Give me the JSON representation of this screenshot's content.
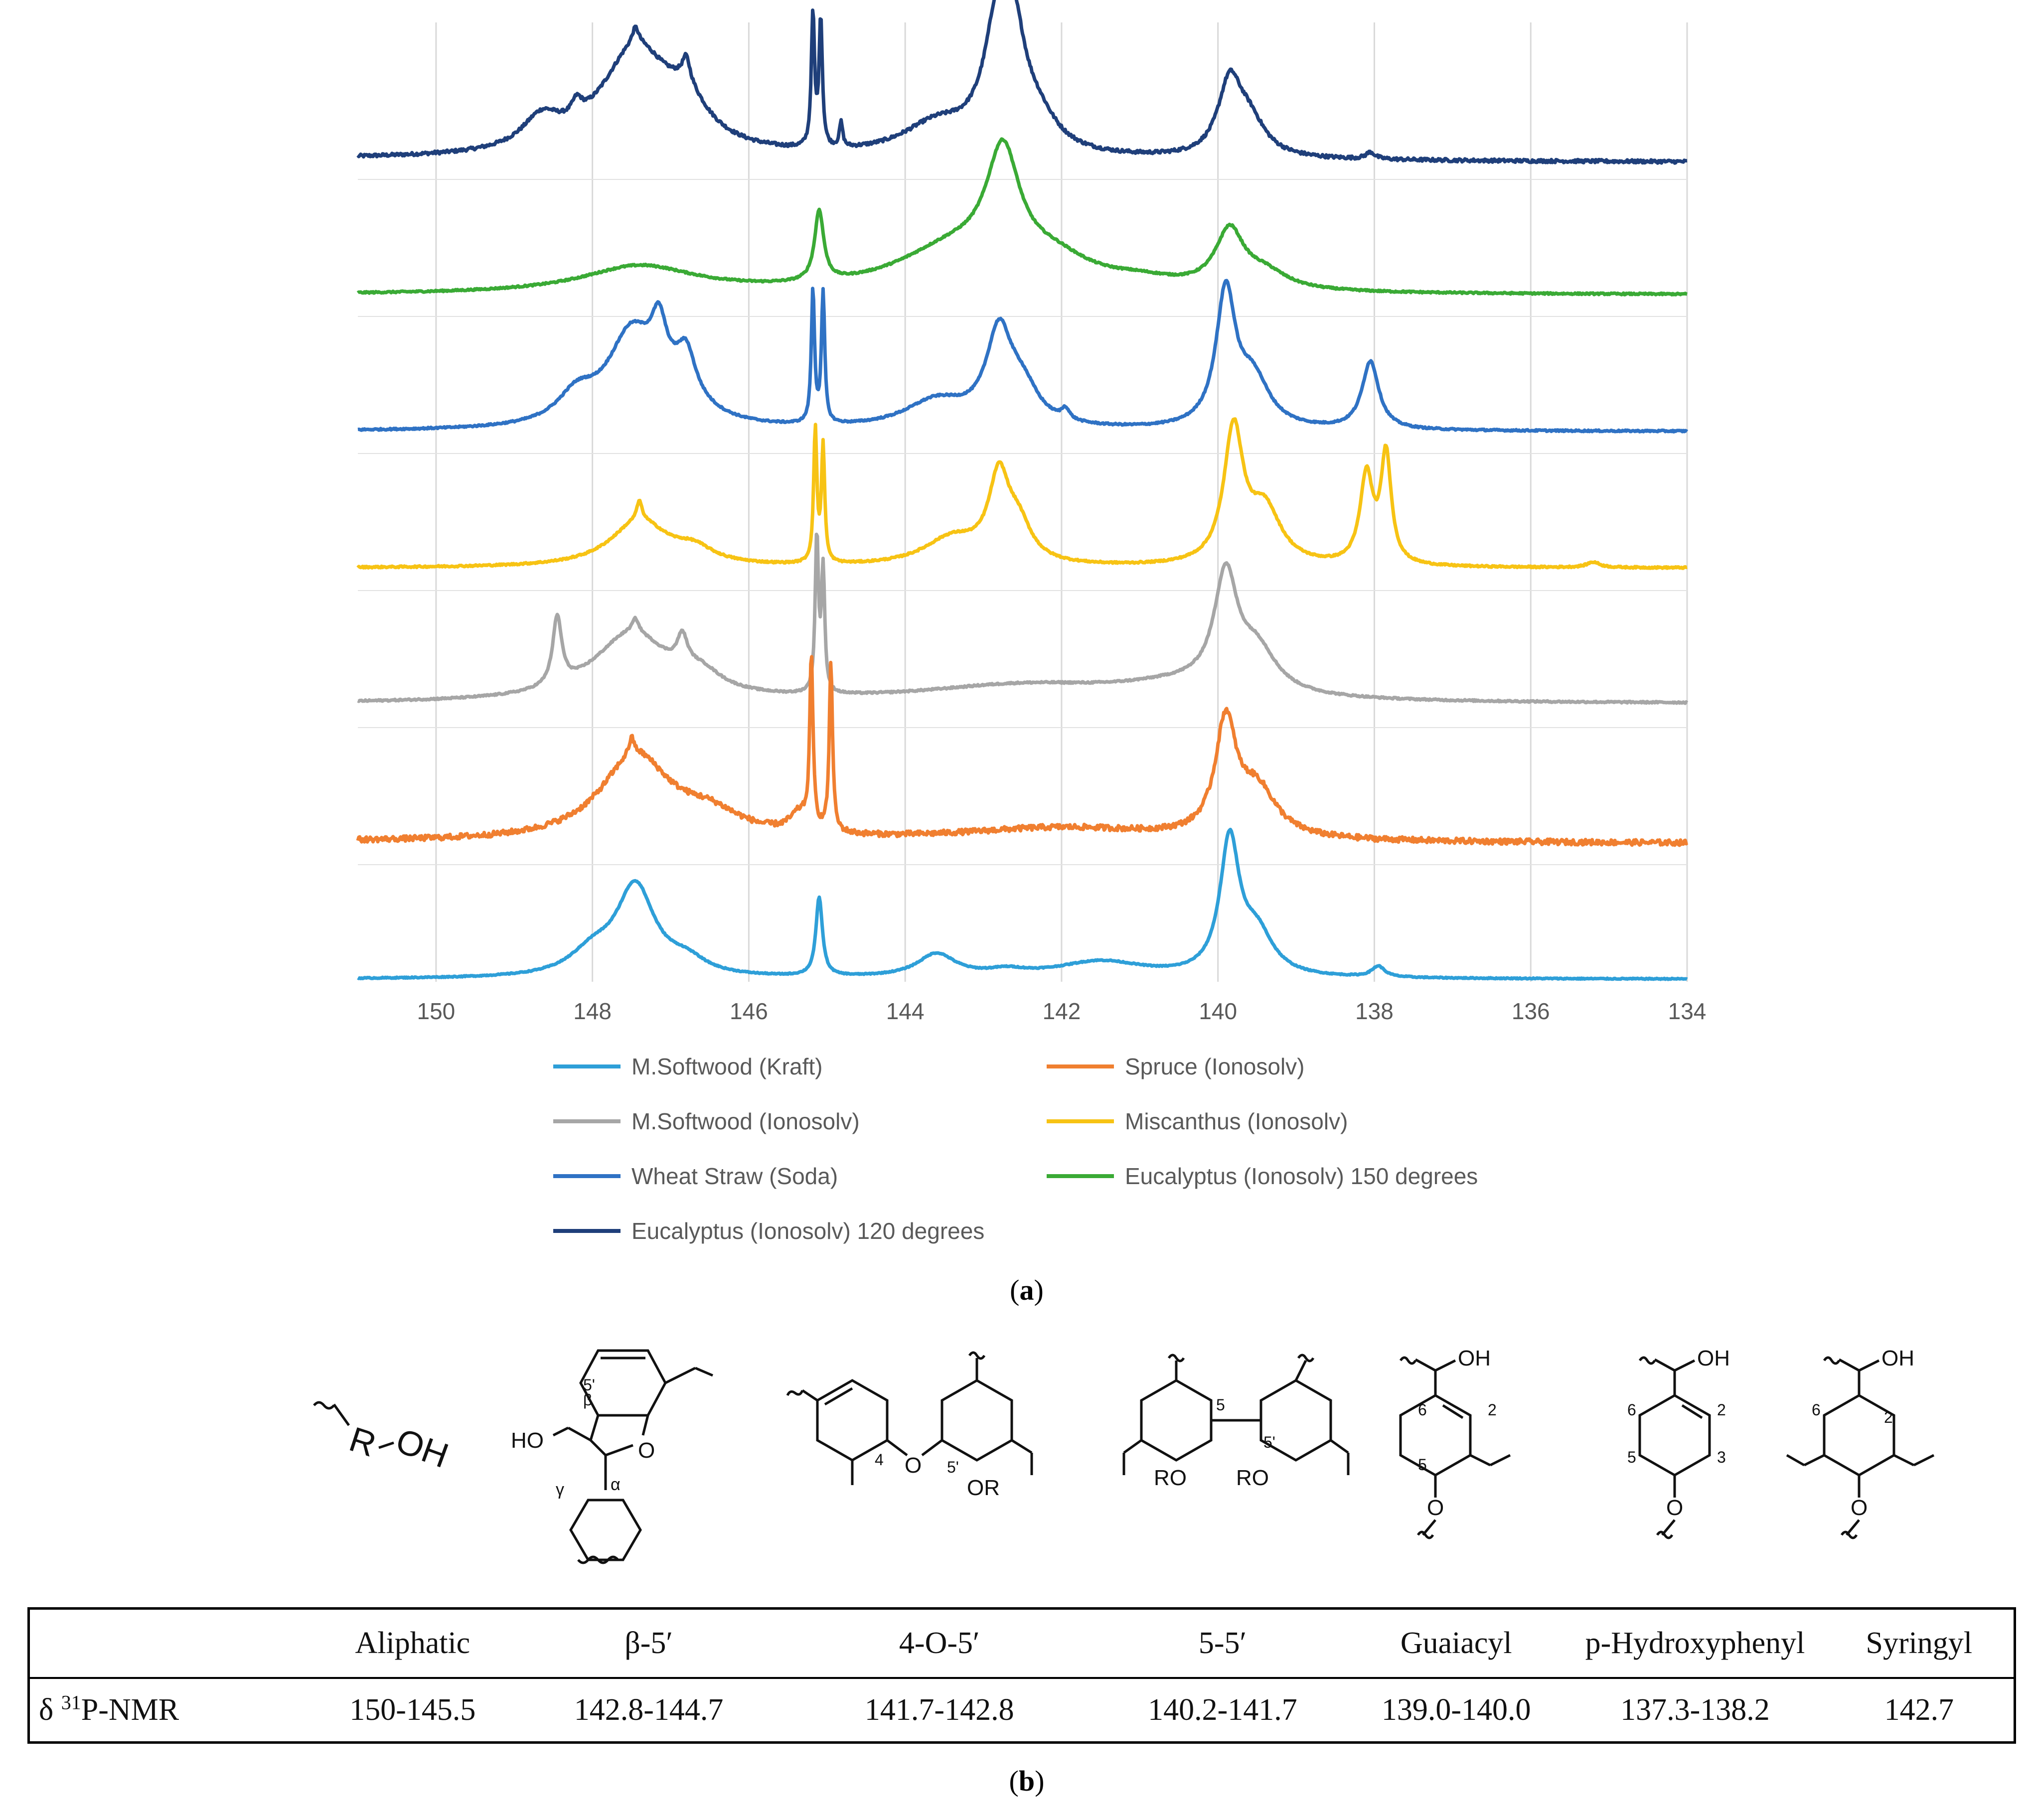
{
  "chart_data": {
    "type": "line",
    "title": "",
    "xlabel": "",
    "ylabel": "",
    "x_reversed": true,
    "xlim": [
      151,
      134
    ],
    "xticks": [
      150,
      148,
      146,
      144,
      142,
      140,
      138,
      136,
      134
    ],
    "xtick_labels": [
      "150",
      "148",
      "146",
      "144",
      "142",
      "140",
      "138",
      "136",
      "134"
    ],
    "grid": true,
    "legend_position": "bottom",
    "panel_label": "a",
    "series": [
      {
        "name": "Eucalyptus (Ionosolv) 120 degrees",
        "color": "#1f3f7a",
        "stack_index": 0,
        "baseline_left": 0.0,
        "baseline_right": -0.02,
        "noise": 0.012,
        "peaks": [
          {
            "x": 147.45,
            "h": 0.78,
            "w": 0.55
          },
          {
            "x": 148.65,
            "h": 0.22,
            "w": 0.3
          },
          {
            "x": 148.2,
            "h": 0.12,
            "w": 0.08
          },
          {
            "x": 147.45,
            "h": 0.12,
            "w": 0.05
          },
          {
            "x": 146.8,
            "h": 0.18,
            "w": 0.06
          },
          {
            "x": 146.8,
            "h": 0.25,
            "w": 0.35
          },
          {
            "x": 145.18,
            "h": 0.98,
            "w": 0.025
          },
          {
            "x": 145.08,
            "h": 0.95,
            "w": 0.025
          },
          {
            "x": 144.82,
            "h": 0.18,
            "w": 0.025
          },
          {
            "x": 143.6,
            "h": 0.22,
            "w": 0.55
          },
          {
            "x": 142.8,
            "h": 0.95,
            "w": 0.22
          },
          {
            "x": 142.6,
            "h": 0.55,
            "w": 0.18
          },
          {
            "x": 142.3,
            "h": 0.2,
            "w": 0.3
          },
          {
            "x": 139.85,
            "h": 0.52,
            "w": 0.18
          },
          {
            "x": 139.6,
            "h": 0.25,
            "w": 0.25
          },
          {
            "x": 138.05,
            "h": 0.05,
            "w": 0.07
          }
        ]
      },
      {
        "name": "Eucalyptus (Ionosolv) 150 degrees",
        "color": "#3aaa35",
        "stack_index": 1,
        "baseline_left": 0.0,
        "baseline_right": 0.0,
        "noise": 0.006,
        "peaks": [
          {
            "x": 147.4,
            "h": 0.2,
            "w": 0.9
          },
          {
            "x": 145.1,
            "h": 0.52,
            "w": 0.07
          },
          {
            "x": 143.4,
            "h": 0.3,
            "w": 0.9
          },
          {
            "x": 142.75,
            "h": 0.85,
            "w": 0.26
          },
          {
            "x": 142.1,
            "h": 0.18,
            "w": 0.6
          },
          {
            "x": 139.85,
            "h": 0.42,
            "w": 0.22
          },
          {
            "x": 139.4,
            "h": 0.12,
            "w": 0.35
          },
          {
            "x": 141.0,
            "h": 0.06,
            "w": 0.6
          }
        ]
      },
      {
        "name": "Wheat Straw (Soda)",
        "color": "#2f72c4",
        "stack_index": 2,
        "baseline_left": 0.0,
        "baseline_right": 0.0,
        "noise": 0.006,
        "peaks": [
          {
            "x": 147.5,
            "h": 0.66,
            "w": 0.38
          },
          {
            "x": 148.2,
            "h": 0.2,
            "w": 0.3
          },
          {
            "x": 147.15,
            "h": 0.4,
            "w": 0.12
          },
          {
            "x": 146.8,
            "h": 0.3,
            "w": 0.14
          },
          {
            "x": 146.9,
            "h": 0.18,
            "w": 0.4
          },
          {
            "x": 145.18,
            "h": 0.98,
            "w": 0.025
          },
          {
            "x": 145.05,
            "h": 0.96,
            "w": 0.025
          },
          {
            "x": 143.6,
            "h": 0.2,
            "w": 0.5
          },
          {
            "x": 142.8,
            "h": 0.66,
            "w": 0.2
          },
          {
            "x": 142.5,
            "h": 0.25,
            "w": 0.25
          },
          {
            "x": 141.95,
            "h": 0.08,
            "w": 0.06
          },
          {
            "x": 139.9,
            "h": 0.98,
            "w": 0.15
          },
          {
            "x": 139.55,
            "h": 0.35,
            "w": 0.25
          },
          {
            "x": 138.05,
            "h": 0.5,
            "w": 0.13
          }
        ]
      },
      {
        "name": "Miscanthus (Ionosolv)",
        "color": "#f7c314",
        "stack_index": 3,
        "baseline_left": 0.0,
        "baseline_right": 0.0,
        "noise": 0.006,
        "peaks": [
          {
            "x": 147.4,
            "h": 0.34,
            "w": 0.45
          },
          {
            "x": 147.4,
            "h": 0.14,
            "w": 0.04
          },
          {
            "x": 146.7,
            "h": 0.1,
            "w": 0.3
          },
          {
            "x": 145.15,
            "h": 0.98,
            "w": 0.025
          },
          {
            "x": 145.05,
            "h": 0.85,
            "w": 0.025
          },
          {
            "x": 143.4,
            "h": 0.2,
            "w": 0.45
          },
          {
            "x": 142.8,
            "h": 0.6,
            "w": 0.16
          },
          {
            "x": 142.55,
            "h": 0.25,
            "w": 0.2
          },
          {
            "x": 139.8,
            "h": 0.98,
            "w": 0.15
          },
          {
            "x": 139.4,
            "h": 0.4,
            "w": 0.25
          },
          {
            "x": 138.1,
            "h": 0.65,
            "w": 0.1
          },
          {
            "x": 137.85,
            "h": 0.8,
            "w": 0.08
          },
          {
            "x": 135.2,
            "h": 0.04,
            "w": 0.1
          }
        ]
      },
      {
        "name": "M.Softwood (Ionosolv)",
        "color": "#a6a6a6",
        "stack_index": 4,
        "baseline_left": 0.0,
        "baseline_right": 0.0,
        "noise": 0.006,
        "peaks": [
          {
            "x": 148.45,
            "h": 0.5,
            "w": 0.07
          },
          {
            "x": 147.5,
            "h": 0.5,
            "w": 0.6
          },
          {
            "x": 147.45,
            "h": 0.1,
            "w": 0.05
          },
          {
            "x": 146.85,
            "h": 0.22,
            "w": 0.08
          },
          {
            "x": 146.6,
            "h": 0.12,
            "w": 0.3
          },
          {
            "x": 145.13,
            "h": 1.15,
            "w": 0.025
          },
          {
            "x": 145.05,
            "h": 0.9,
            "w": 0.025
          },
          {
            "x": 142.5,
            "h": 0.12,
            "w": 1.6
          },
          {
            "x": 140.5,
            "h": 0.1,
            "w": 1.0
          },
          {
            "x": 139.9,
            "h": 0.82,
            "w": 0.18
          },
          {
            "x": 139.5,
            "h": 0.3,
            "w": 0.3
          }
        ]
      },
      {
        "name": "Spruce (Ionosolv)",
        "color": "#f07f30",
        "stack_index": 5,
        "baseline_left": 0.0,
        "baseline_right": -0.01,
        "noise": 0.02,
        "peaks": [
          {
            "x": 147.45,
            "h": 0.62,
            "w": 0.55
          },
          {
            "x": 147.5,
            "h": 0.12,
            "w": 0.04
          },
          {
            "x": 146.5,
            "h": 0.15,
            "w": 0.5
          },
          {
            "x": 145.35,
            "h": 0.14,
            "w": 0.15
          },
          {
            "x": 145.2,
            "h": 1.25,
            "w": 0.025
          },
          {
            "x": 144.95,
            "h": 1.25,
            "w": 0.025
          },
          {
            "x": 142.0,
            "h": 0.1,
            "w": 1.6
          },
          {
            "x": 139.9,
            "h": 0.82,
            "w": 0.16
          },
          {
            "x": 139.5,
            "h": 0.35,
            "w": 0.3
          }
        ]
      },
      {
        "name": "M.Softwood (Kraft)",
        "color": "#2e9fd8",
        "stack_index": 6,
        "baseline_left": 0.0,
        "baseline_right": 0.0,
        "noise": 0.004,
        "peaks": [
          {
            "x": 147.45,
            "h": 0.66,
            "w": 0.3
          },
          {
            "x": 148.0,
            "h": 0.16,
            "w": 0.35
          },
          {
            "x": 146.8,
            "h": 0.1,
            "w": 0.3
          },
          {
            "x": 145.1,
            "h": 0.58,
            "w": 0.05
          },
          {
            "x": 143.6,
            "h": 0.17,
            "w": 0.3
          },
          {
            "x": 142.7,
            "h": 0.04,
            "w": 0.3
          },
          {
            "x": 141.5,
            "h": 0.12,
            "w": 0.7
          },
          {
            "x": 139.85,
            "h": 0.98,
            "w": 0.15
          },
          {
            "x": 139.5,
            "h": 0.3,
            "w": 0.25
          },
          {
            "x": 137.95,
            "h": 0.08,
            "w": 0.1
          }
        ]
      }
    ]
  },
  "legend": {
    "items": [
      {
        "label": "M.Softwood (Kraft)",
        "color": "#2e9fd8"
      },
      {
        "label": "Spruce (Ionosolv)",
        "color": "#f07f30"
      },
      {
        "label": "M.Softwood (Ionosolv)",
        "color": "#a6a6a6"
      },
      {
        "label": "Miscanthus (Ionosolv)",
        "color": "#f7c314"
      },
      {
        "label": "Wheat Straw (Soda)",
        "color": "#2f72c4"
      },
      {
        "label": "Eucalyptus (Ionosolv) 150 degrees",
        "color": "#3aaa35"
      },
      {
        "label": "Eucalyptus (Ionosolv) 120 degrees",
        "color": "#1f3f7a"
      }
    ]
  },
  "panels": {
    "a": {
      "open": "(",
      "letter": "a",
      "close": ")"
    },
    "b": {
      "open": "(",
      "letter": "b",
      "close": ")"
    }
  },
  "structures": {
    "aliphatic": {
      "r": "R",
      "oh": "OH"
    },
    "beta5": {
      "ho": "HO",
      "o": "O",
      "beta": "β",
      "five_prime": "5'",
      "gamma": "γ",
      "alpha": "α"
    },
    "o4_5": {
      "o": "O",
      "four": "4",
      "five_prime": "5'",
      "or": "OR"
    },
    "five5": {
      "five": "5",
      "five_prime": "5'",
      "ro1": "RO",
      "ro2": "RO"
    },
    "guaiacyl": {
      "oh": "OH",
      "n6": "6",
      "n2": "2",
      "n5": "5",
      "o": "O"
    },
    "hydroxyphenyl": {
      "oh": "OH",
      "n6": "6",
      "n2": "2",
      "n5": "5",
      "n3": "3",
      "o": "O"
    },
    "syringyl": {
      "oh": "OH",
      "n6": "6",
      "n2": "2",
      "o": "O"
    }
  },
  "table": {
    "headers": [
      "",
      "Aliphatic",
      "β-5′",
      "4-O-5′",
      "5-5′",
      "Guaiacyl",
      "p-Hydroxyphenyl",
      "Syringyl"
    ],
    "row_label_prefix": "δ ",
    "row_label_sup": "31",
    "row_label_suffix": "P-NMR",
    "values": [
      "150-145.5",
      "142.8-144.7",
      "141.7-142.8",
      "140.2-141.7",
      "139.0-140.0",
      "137.3-138.2",
      "142.7"
    ]
  }
}
